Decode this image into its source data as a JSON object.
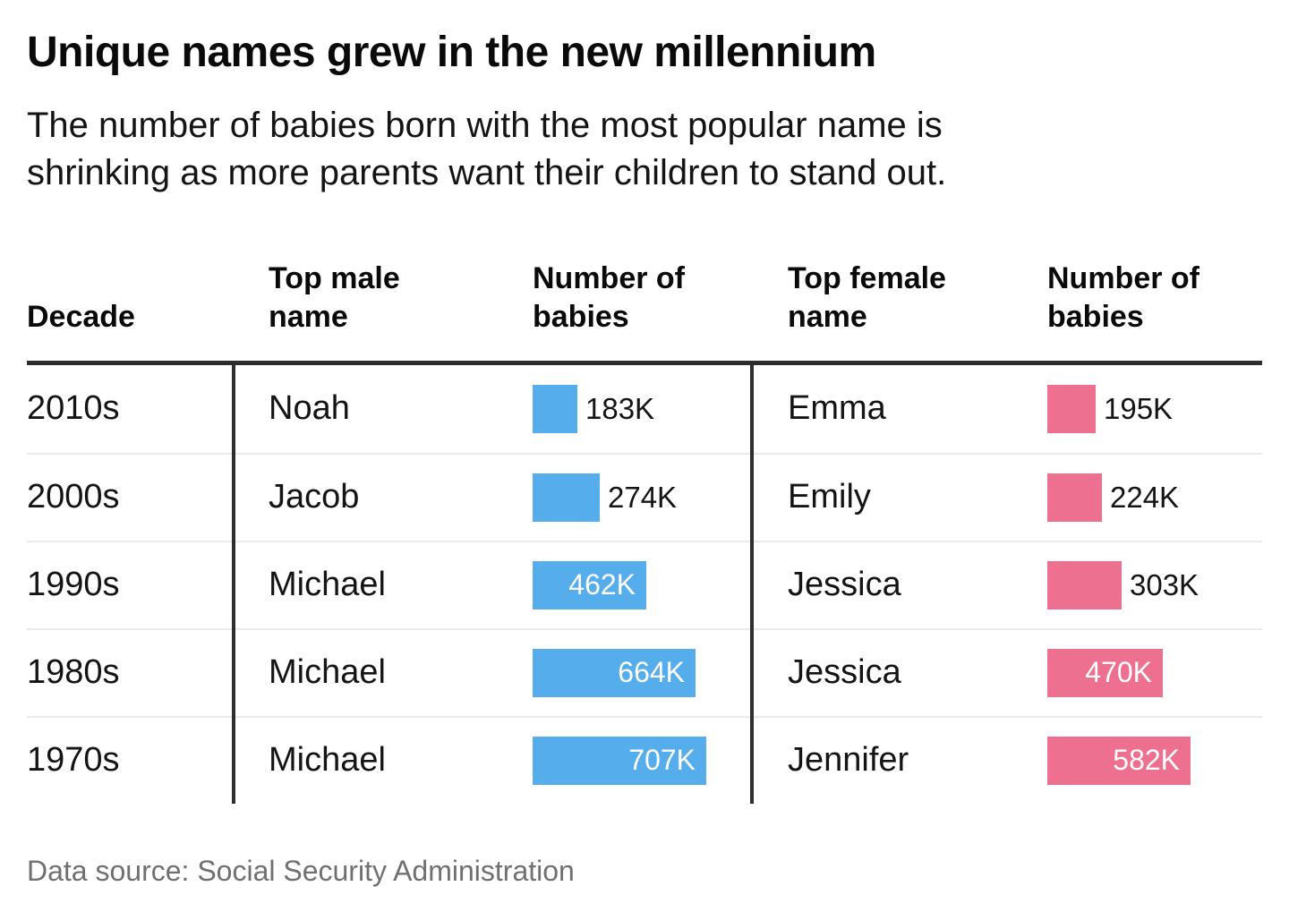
{
  "chart_data": {
    "type": "bar",
    "title": "Unique names grew in the new millennium",
    "subtitle_lines": [
      "The number of babies born with the most popular name is",
      "shrinking as more parents want their children to stand out."
    ],
    "source": "Data source: Social Security Administration",
    "columns": [
      "Decade",
      "Top male name",
      "Number of babies",
      "Top female name",
      "Number of babies"
    ],
    "unit": "thousands of babies (K)",
    "value_axis_max_k": 707,
    "colors": {
      "male_bar": "#56adeb",
      "female_bar": "#ed7090"
    },
    "categories": [
      "2010s",
      "2000s",
      "1990s",
      "1980s",
      "1970s"
    ],
    "series": [
      {
        "name": "Top male name - number of babies",
        "names": [
          "Noah",
          "Jacob",
          "Michael",
          "Michael",
          "Michael"
        ],
        "values_k": [
          183,
          274,
          462,
          664,
          707
        ]
      },
      {
        "name": "Top female name - number of babies",
        "names": [
          "Emma",
          "Emily",
          "Jessica",
          "Jessica",
          "Jennifer"
        ],
        "values_k": [
          195,
          224,
          303,
          470,
          582
        ]
      }
    ],
    "rows": [
      {
        "decade": "2010s",
        "male_name": "Noah",
        "male_value_k": 183,
        "male_label": "183K",
        "female_name": "Emma",
        "female_value_k": 195,
        "female_label": "195K"
      },
      {
        "decade": "2000s",
        "male_name": "Jacob",
        "male_value_k": 274,
        "male_label": "274K",
        "female_name": "Emily",
        "female_value_k": 224,
        "female_label": "224K"
      },
      {
        "decade": "1990s",
        "male_name": "Michael",
        "male_value_k": 462,
        "male_label": "462K",
        "female_name": "Jessica",
        "female_value_k": 303,
        "female_label": "303K"
      },
      {
        "decade": "1980s",
        "male_name": "Michael",
        "male_value_k": 664,
        "male_label": "664K",
        "female_name": "Jessica",
        "female_value_k": 470,
        "female_label": "470K"
      },
      {
        "decade": "1970s",
        "male_name": "Michael",
        "male_value_k": 707,
        "male_label": "707K",
        "female_name": "Jennifer",
        "female_value_k": 582,
        "female_label": "582K"
      }
    ]
  }
}
